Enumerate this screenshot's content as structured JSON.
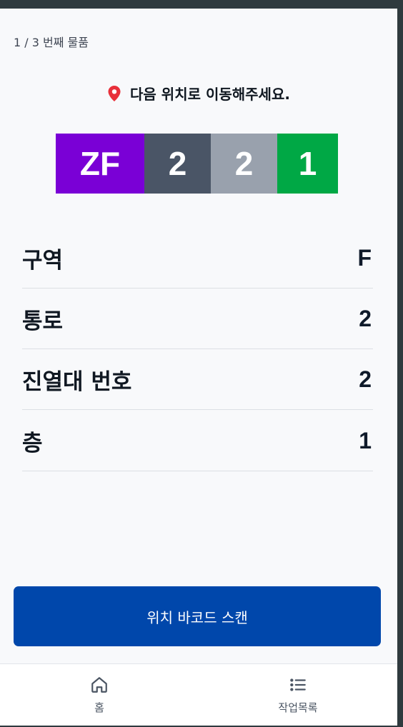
{
  "progress": "1 / 3 번째 물품",
  "instruction": {
    "icon": "location-pin-icon",
    "text": "다음 위치로 이동해주세요."
  },
  "location_code": {
    "segments": [
      {
        "text": "ZF",
        "color": "#7a00d6"
      },
      {
        "text": "2",
        "color": "#4a5566"
      },
      {
        "text": "2",
        "color": "#99a1ad"
      },
      {
        "text": "1",
        "color": "#00a845"
      }
    ]
  },
  "details": [
    {
      "label": "구역",
      "value": "F"
    },
    {
      "label": "통로",
      "value": "2"
    },
    {
      "label": "진열대 번호",
      "value": "2"
    },
    {
      "label": "층",
      "value": "1"
    }
  ],
  "scan_button": {
    "label": "위치 바코드 스캔"
  },
  "nav": {
    "items": [
      {
        "label": "홈",
        "icon": "home-icon"
      },
      {
        "label": "작업목록",
        "icon": "list-icon"
      }
    ]
  },
  "colors": {
    "accent": "#0047ab",
    "pin": "#e8303a"
  }
}
